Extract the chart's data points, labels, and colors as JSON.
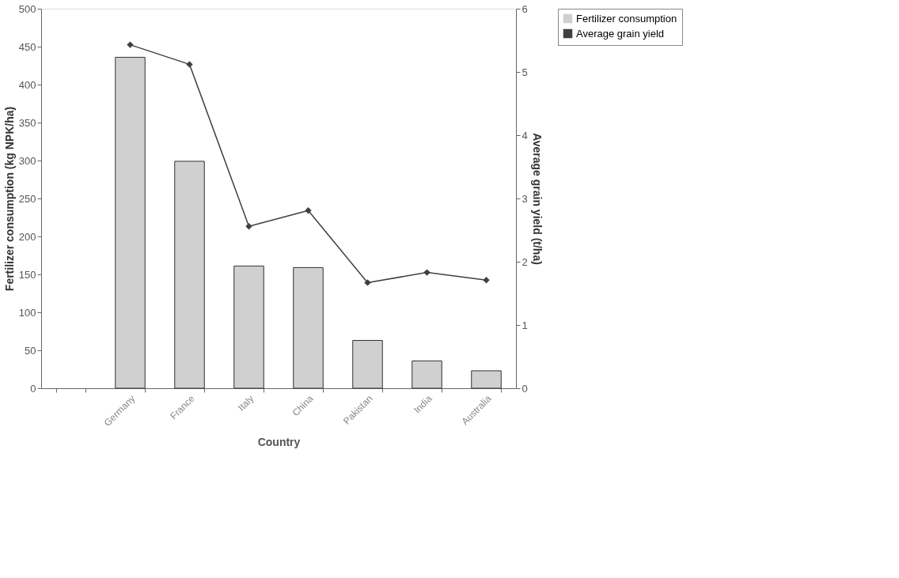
{
  "chart_data": {
    "type": "bar",
    "xlabel": "Country",
    "ylabel": "Fertilizer consumption (kg NPK/ha)",
    "y2label": "Average grain yield (t/ha)",
    "categories": [
      null,
      "Germany",
      "France",
      "Italy",
      "China",
      "Pakistan",
      "India",
      "Australia"
    ],
    "series": [
      {
        "name": "Fertilizer consumption",
        "color": "#d0d0d0",
        "values": [
          null,
          436,
          299,
          161,
          159,
          63,
          36,
          23
        ]
      },
      {
        "name": "Average grain yield",
        "type": "line",
        "axis": "y2",
        "color": "#404040",
        "values": [
          null,
          5.43,
          5.12,
          2.56,
          2.81,
          1.67,
          1.83,
          1.71
        ]
      }
    ],
    "ylim": [
      0,
      500
    ],
    "yticks": [
      0,
      50,
      100,
      150,
      200,
      250,
      300,
      350,
      400,
      450,
      500
    ],
    "y2lim": [
      0,
      6
    ],
    "y2ticks": [
      0,
      1,
      2,
      3,
      4,
      5,
      6
    ],
    "marker": "diamond",
    "line_style": "solid",
    "grid": false,
    "legend": "right"
  }
}
